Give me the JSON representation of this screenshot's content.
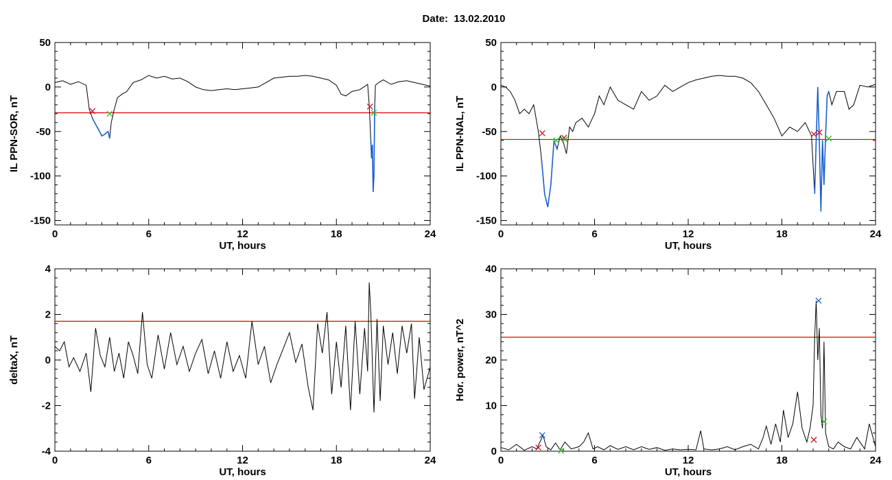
{
  "page_title": "Date:  13.02.2010",
  "colors": {
    "trace": "#000000",
    "threshold": "#e00000",
    "highlight": "#1a5fd1",
    "marker_start": "#d01020",
    "marker_end": "#30c030",
    "marker_peak": "#1a5fd1"
  },
  "chart_data": [
    {
      "type": "line",
      "title": "",
      "xlabel": "UT, hours",
      "ylabel": "IL PPN-SOR, nT",
      "xlim": [
        0,
        24
      ],
      "ylim": [
        -155,
        50
      ],
      "xticks": [
        0,
        6,
        12,
        18,
        24
      ],
      "yticks": [
        -150,
        -100,
        -50,
        0,
        50
      ],
      "grid": false,
      "series": [
        {
          "x": [
            0,
            0.5,
            1,
            1.5,
            2,
            2.2,
            2.4,
            2.6,
            2.8,
            3,
            3.2,
            3.4,
            3.5,
            3.6,
            3.8,
            4,
            4.3,
            4.6,
            5,
            5.5,
            6,
            6.5,
            7,
            7.5,
            8,
            8.5,
            9,
            9.5,
            10,
            10.5,
            11,
            11.5,
            12,
            12.5,
            13,
            13.5,
            14,
            14.5,
            15,
            15.5,
            16,
            16.5,
            17,
            17.5,
            18,
            18.3,
            18.6,
            19,
            19.5,
            20,
            20.1,
            20.2,
            20.25,
            20.3,
            20.35,
            20.4,
            20.45,
            20.5,
            20.7,
            21,
            21.5,
            22,
            22.5,
            23,
            23.5,
            24
          ],
          "y": [
            5,
            7,
            3,
            6,
            2,
            -25,
            -35,
            -42,
            -48,
            -55,
            -53,
            -50,
            -58,
            -40,
            -25,
            -12,
            -8,
            -5,
            5,
            8,
            13,
            10,
            12,
            9,
            10,
            6,
            0,
            -3,
            -4,
            -3,
            -2,
            -3,
            -2,
            -1,
            0,
            5,
            10,
            11,
            12,
            12,
            13,
            12,
            10,
            8,
            2,
            -8,
            -10,
            -5,
            -3,
            3,
            -20,
            -60,
            -80,
            -65,
            -118,
            -100,
            -20,
            2,
            5,
            8,
            3,
            6,
            7,
            5,
            3,
            1
          ]
        }
      ],
      "threshold": -29,
      "highlight_intervals": [
        [
          2.4,
          3.5
        ],
        [
          20.2,
          20.45
        ]
      ],
      "markers": [
        {
          "x": 2.4,
          "y": -27,
          "kind": "start"
        },
        {
          "x": 3.5,
          "y": -30,
          "kind": "end"
        },
        {
          "x": 20.15,
          "y": -22,
          "kind": "start"
        },
        {
          "x": 20.4,
          "y": -29,
          "kind": "end"
        }
      ]
    },
    {
      "type": "line",
      "title": "",
      "xlabel": "UT, hours",
      "ylabel": "IL PPN-NAL, nT",
      "xlim": [
        0,
        24
      ],
      "ylim": [
        -155,
        50
      ],
      "xticks": [
        0,
        6,
        12,
        18,
        24
      ],
      "yticks": [
        -150,
        -100,
        -50,
        0,
        50
      ],
      "grid": false,
      "series": [
        {
          "x": [
            0,
            0.3,
            0.6,
            0.9,
            1.2,
            1.5,
            1.8,
            2.1,
            2.4,
            2.6,
            2.8,
            3,
            3.2,
            3.4,
            3.6,
            3.8,
            4,
            4.2,
            4.4,
            4.6,
            4.8,
            5.2,
            5.6,
            6,
            6.3,
            6.6,
            7,
            7.5,
            8,
            8.5,
            9,
            9.5,
            10,
            10.5,
            11,
            11.5,
            12,
            12.5,
            13,
            13.5,
            14,
            14.5,
            15,
            15.5,
            16,
            16.5,
            17,
            17.5,
            18,
            18.5,
            19,
            19.5,
            19.9,
            20.1,
            20.2,
            20.3,
            20.4,
            20.5,
            20.6,
            20.7,
            20.8,
            20.9,
            21,
            21.2,
            21.5,
            22,
            22.3,
            22.6,
            23,
            23.5,
            24
          ],
          "y": [
            2,
            0,
            -5,
            -15,
            -30,
            -25,
            -30,
            -20,
            -50,
            -80,
            -120,
            -135,
            -110,
            -60,
            -70,
            -55,
            -62,
            -75,
            -45,
            -50,
            -40,
            -35,
            -45,
            -30,
            -10,
            -20,
            0,
            -15,
            -20,
            -25,
            -5,
            -15,
            -10,
            2,
            -5,
            0,
            5,
            8,
            10,
            12,
            13,
            12,
            12,
            10,
            5,
            -5,
            -20,
            -35,
            -55,
            -45,
            -50,
            -40,
            -55,
            -120,
            -60,
            0,
            -60,
            -140,
            -60,
            -110,
            -55,
            -10,
            -5,
            -20,
            -5,
            -5,
            -25,
            -20,
            2,
            0,
            3
          ]
        }
      ],
      "threshold": -59,
      "highlight_intervals": [
        [
          2.6,
          3.6
        ],
        [
          19.95,
          21
        ]
      ],
      "markers": [
        {
          "x": 2.65,
          "y": -52,
          "kind": "start"
        },
        {
          "x": 3.55,
          "y": -60,
          "kind": "end"
        },
        {
          "x": 4.05,
          "y": -57,
          "kind": "start"
        },
        {
          "x": 4.1,
          "y": -59,
          "kind": "end"
        },
        {
          "x": 20.05,
          "y": -53,
          "kind": "start"
        },
        {
          "x": 20.4,
          "y": -51,
          "kind": "start"
        },
        {
          "x": 21,
          "y": -58,
          "kind": "end"
        }
      ]
    },
    {
      "type": "line",
      "title": "",
      "xlabel": "UT, hours",
      "ylabel": "deltaX, nT",
      "xlim": [
        0,
        24
      ],
      "ylim": [
        -4,
        4
      ],
      "xticks": [
        0,
        6,
        12,
        18,
        24
      ],
      "yticks": [
        -4,
        -2,
        0,
        2,
        4
      ],
      "grid": false,
      "series": [
        {
          "x": [
            0,
            0.3,
            0.6,
            0.9,
            1.2,
            1.6,
            2,
            2.3,
            2.6,
            2.9,
            3.2,
            3.5,
            3.8,
            4.1,
            4.4,
            4.7,
            5,
            5.3,
            5.6,
            5.9,
            6.2,
            6.6,
            7,
            7.4,
            7.8,
            8.2,
            8.6,
            9,
            9.4,
            9.8,
            10.2,
            10.6,
            11,
            11.4,
            11.8,
            12.2,
            12.6,
            13,
            13.4,
            13.8,
            14.2,
            14.6,
            15,
            15.4,
            15.8,
            16.2,
            16.5,
            16.8,
            17.1,
            17.4,
            17.7,
            18,
            18.3,
            18.6,
            18.9,
            19.2,
            19.5,
            19.8,
            20,
            20.1,
            20.2,
            20.4,
            20.6,
            20.8,
            21,
            21.3,
            21.6,
            21.9,
            22.2,
            22.5,
            22.8,
            23,
            23.3,
            23.6,
            24
          ],
          "y": [
            0.6,
            0.4,
            0.8,
            -0.3,
            0.1,
            -0.5,
            0.3,
            -1.4,
            1.4,
            0.2,
            -0.3,
            1,
            -0.5,
            0.3,
            -0.8,
            0.8,
            0.2,
            -0.6,
            2.1,
            -0.2,
            -0.8,
            1.1,
            -0.4,
            1.2,
            -0.2,
            0.6,
            -0.5,
            0.3,
            0.9,
            -0.6,
            0.4,
            -0.8,
            0.8,
            -0.5,
            0.2,
            -0.8,
            1.7,
            -0.2,
            0.6,
            -1,
            -0.2,
            0.5,
            1.2,
            -0.1,
            0.7,
            -1.2,
            -2.2,
            1.6,
            0.3,
            2.1,
            -1.5,
            0.8,
            -1.2,
            1.5,
            -2.2,
            1.7,
            -1.5,
            1.4,
            -0.5,
            3.4,
            2.1,
            -2.3,
            1.8,
            -1.8,
            1.5,
            -0.2,
            1.2,
            -0.6,
            1.5,
            0.3,
            1.6,
            -1.7,
            1,
            -1.3,
            -0.3
          ]
        }
      ],
      "threshold": 1.7,
      "highlight_intervals": [],
      "markers": []
    },
    {
      "type": "line",
      "title": "",
      "xlabel": "UT, hours",
      "ylabel": "Hor. power, nT^2",
      "xlim": [
        0,
        24
      ],
      "ylim": [
        0,
        40
      ],
      "xticks": [
        0,
        6,
        12,
        18,
        24
      ],
      "yticks": [
        0,
        10,
        20,
        30,
        40
      ],
      "grid": false,
      "series": [
        {
          "x": [
            0,
            0.5,
            1,
            1.5,
            2,
            2.3,
            2.5,
            2.7,
            2.9,
            3.2,
            3.5,
            3.8,
            4.1,
            4.5,
            5,
            5.3,
            5.6,
            5.9,
            6.2,
            6.6,
            7,
            7.5,
            8,
            8.5,
            9,
            9.5,
            10,
            10.5,
            11,
            11.5,
            12,
            12.5,
            12.8,
            13,
            13.5,
            14,
            14.5,
            15,
            15.5,
            16,
            16.5,
            16.8,
            17,
            17.3,
            17.6,
            17.9,
            18.1,
            18.4,
            18.7,
            19,
            19.3,
            19.6,
            19.8,
            20,
            20.1,
            20.2,
            20.3,
            20.4,
            20.5,
            20.6,
            20.7,
            20.8,
            21,
            21.3,
            21.6,
            22,
            22.4,
            22.8,
            23,
            23.3,
            23.6,
            24
          ],
          "y": [
            0.8,
            0.3,
            1.5,
            0.2,
            1,
            0.5,
            2,
            3.5,
            1,
            0.3,
            1.8,
            0.3,
            2,
            0.5,
            1,
            2,
            4,
            0.5,
            1,
            0.3,
            1.2,
            0.4,
            1,
            0.3,
            1,
            0.4,
            0.8,
            0.2,
            0.5,
            0.3,
            0.4,
            0.3,
            4.5,
            0.5,
            0.3,
            0.5,
            1,
            0.3,
            1,
            1.5,
            0.5,
            3,
            5.5,
            1.5,
            6,
            2,
            9,
            3,
            6,
            13,
            5,
            2,
            5,
            10,
            25,
            33,
            20,
            27,
            8,
            5,
            24,
            4,
            1,
            0.5,
            2,
            1,
            0.5,
            3,
            2,
            0.5,
            6,
            1
          ]
        }
      ],
      "threshold": 25,
      "highlight_intervals": [],
      "markers": [
        {
          "x": 2.4,
          "y": 0.8,
          "kind": "start"
        },
        {
          "x": 2.65,
          "y": 3.5,
          "kind": "peak"
        },
        {
          "x": 3.85,
          "y": 0.1,
          "kind": "end"
        },
        {
          "x": 20.05,
          "y": 2.5,
          "kind": "start"
        },
        {
          "x": 20.35,
          "y": 33,
          "kind": "peak"
        },
        {
          "x": 20.7,
          "y": 6.5,
          "kind": "end"
        }
      ]
    }
  ]
}
